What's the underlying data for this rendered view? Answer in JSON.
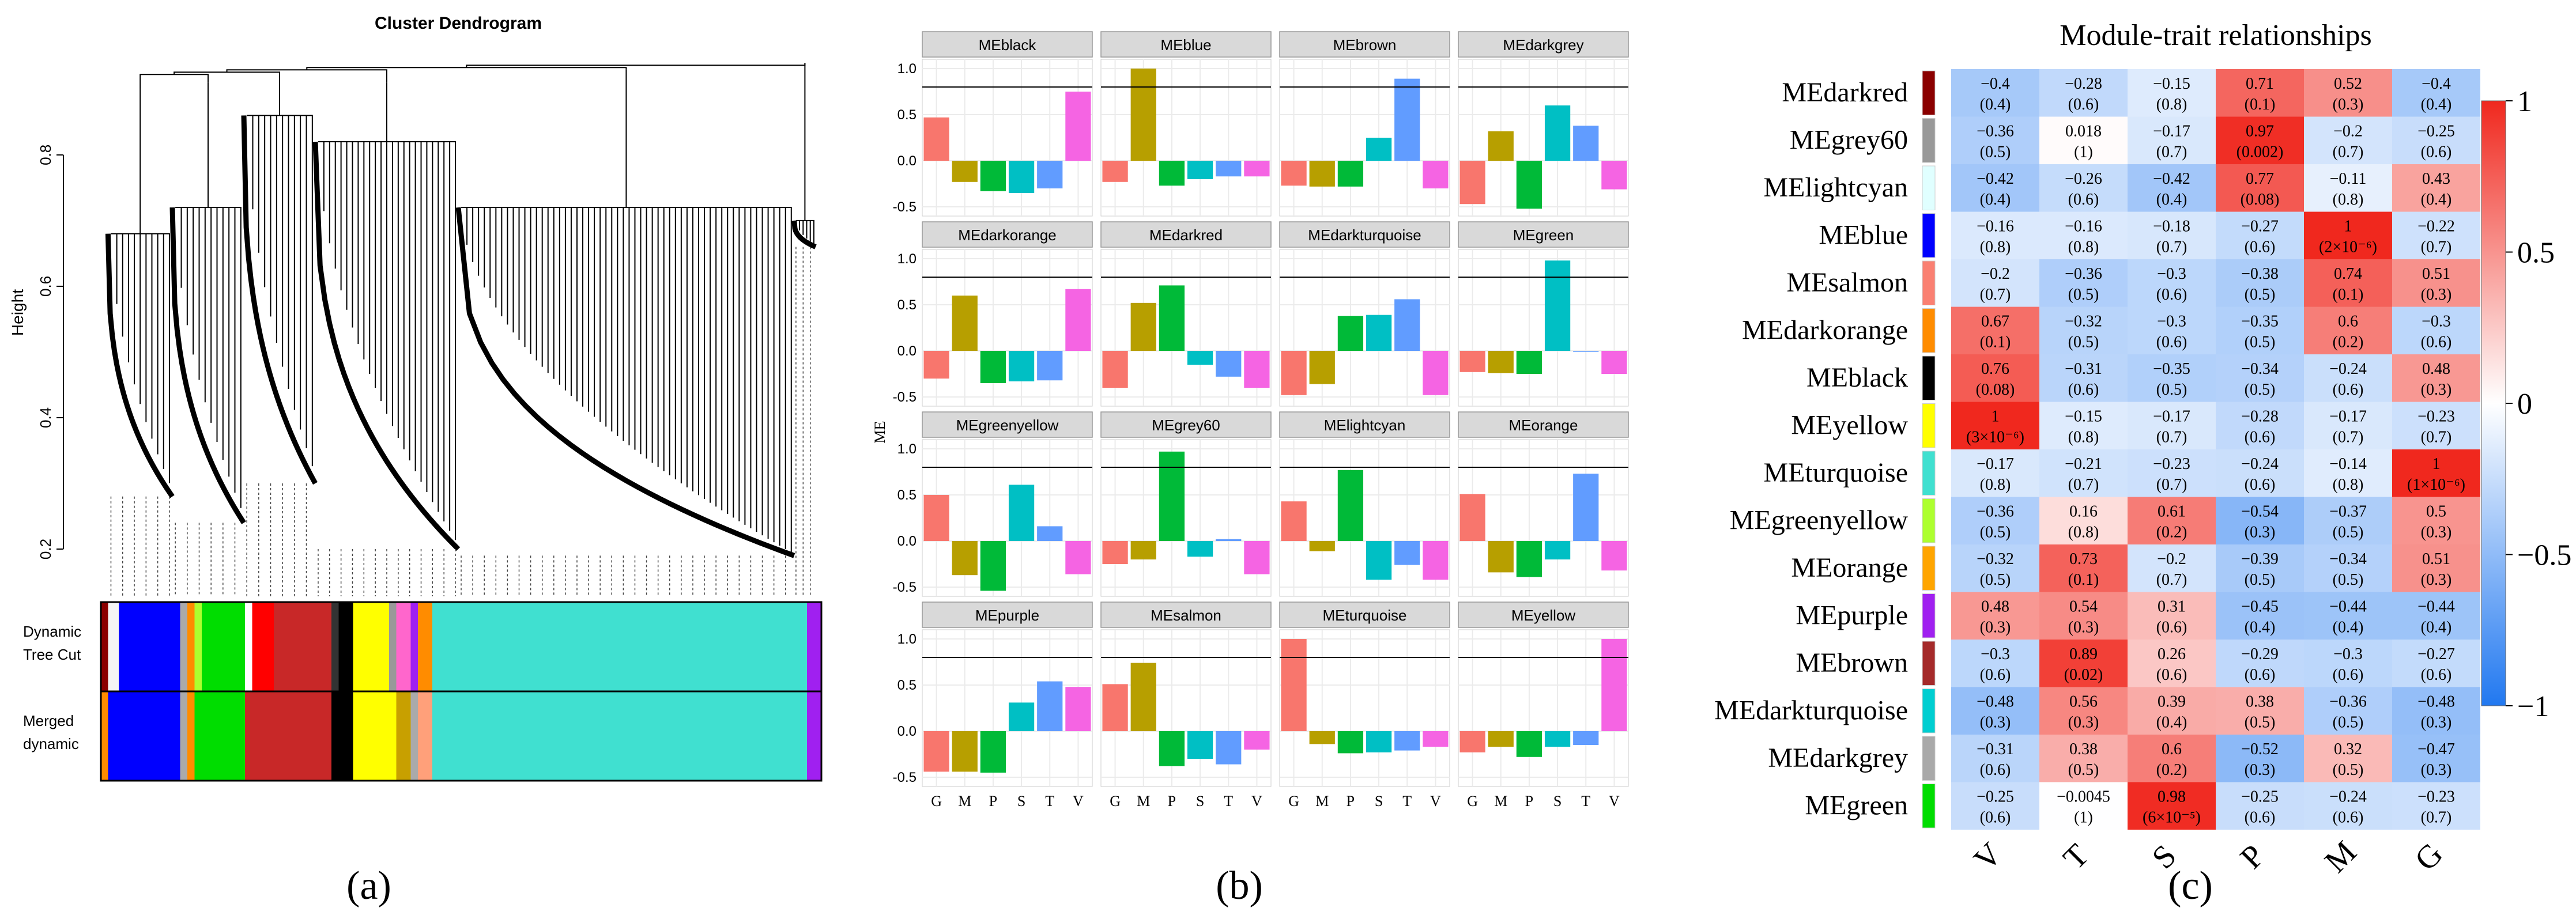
{
  "panel_labels": [
    "(a)",
    "(b)",
    "(c)"
  ],
  "chart_data": [
    {
      "type": "dendrogram",
      "title": "Cluster Dendrogram",
      "ylabel": "Height",
      "yticks": [
        0.2,
        0.4,
        0.6,
        0.8
      ],
      "ylim": [
        0.15,
        0.97
      ],
      "merge_height": 0.94,
      "groups": [
        {
          "span": [
            0.01,
            0.1
          ],
          "top": 0.9,
          "h1": 0.68,
          "h2": 0.28
        },
        {
          "span": [
            0.1,
            0.2
          ],
          "top": 0.91,
          "h1": 0.72,
          "h2": 0.24
        },
        {
          "span": [
            0.2,
            0.3
          ],
          "top": 0.92,
          "h1": 0.86,
          "h2": 0.3
        },
        {
          "span": [
            0.3,
            0.5
          ],
          "top": 0.91,
          "h1": 0.82,
          "h2": 0.2
        },
        {
          "span": [
            0.5,
            0.97
          ],
          "top": 0.93,
          "h1": 0.72,
          "h2": 0.19
        },
        {
          "span": [
            0.97,
            1.0
          ],
          "top": 0.94,
          "h1": 0.7,
          "h2": 0.66
        }
      ],
      "color_rows": [
        {
          "label": [
            "Dynamic",
            "Tree Cut"
          ],
          "segments": [
            [
              "#8b0000",
              0.0,
              0.01
            ],
            [
              "#f5f5f5",
              0.01,
              0.025
            ],
            [
              "#0000ff",
              0.025,
              0.11
            ],
            [
              "#aaaaaa",
              0.11,
              0.12
            ],
            [
              "#ff8c00",
              0.12,
              0.13
            ],
            [
              "#adff2f",
              0.13,
              0.14
            ],
            [
              "#00dd00",
              0.14,
              0.2
            ],
            [
              "#ffffff",
              0.2,
              0.21
            ],
            [
              "#ff0000",
              0.21,
              0.24
            ],
            [
              "#c82828",
              0.24,
              0.32
            ],
            [
              "#333333",
              0.32,
              0.33
            ],
            [
              "#000000",
              0.33,
              0.35
            ],
            [
              "#ffff00",
              0.35,
              0.38
            ],
            [
              "#ffff00",
              0.38,
              0.4
            ],
            [
              "#999999",
              0.4,
              0.41
            ],
            [
              "#ff66cc",
              0.41,
              0.43
            ],
            [
              "#a020f0",
              0.43,
              0.44
            ],
            [
              "#ff8c00",
              0.44,
              0.46
            ],
            [
              "#40e0d0",
              0.46,
              0.98
            ],
            [
              "#a020f0",
              0.98,
              1.0
            ]
          ]
        },
        {
          "label": [
            "Merged",
            "dynamic"
          ],
          "segments": [
            [
              "#ff8c00",
              0.0,
              0.01
            ],
            [
              "#0000ff",
              0.01,
              0.11
            ],
            [
              "#aaaaaa",
              0.11,
              0.12
            ],
            [
              "#ff8c00",
              0.12,
              0.13
            ],
            [
              "#00dd00",
              0.13,
              0.2
            ],
            [
              "#c82828",
              0.2,
              0.32
            ],
            [
              "#000000",
              0.32,
              0.35
            ],
            [
              "#ffff00",
              0.35,
              0.41
            ],
            [
              "#c8a000",
              0.41,
              0.43
            ],
            [
              "#aaaaaa",
              0.43,
              0.44
            ],
            [
              "#ffa07a",
              0.44,
              0.46
            ],
            [
              "#40e0d0",
              0.46,
              0.98
            ],
            [
              "#a020f0",
              0.98,
              1.0
            ]
          ]
        }
      ]
    },
    {
      "type": "bar",
      "ylabel": "ME",
      "categories": [
        "G",
        "M",
        "P",
        "S",
        "T",
        "V"
      ],
      "category_colors": [
        "#f8766d",
        "#b79f00",
        "#00ba38",
        "#00bfc4",
        "#619cff",
        "#f564e3"
      ],
      "ylim": [
        -0.6,
        1.1
      ],
      "yticks": [
        -0.5,
        0.0,
        0.5,
        1.0
      ],
      "hline": 0.8,
      "facets": [
        {
          "name": "MEblack",
          "values": [
            0.47,
            -0.23,
            -0.33,
            -0.35,
            -0.3,
            0.75
          ]
        },
        {
          "name": "MEblue",
          "values": [
            -0.23,
            1.0,
            -0.27,
            -0.2,
            -0.17,
            -0.17
          ]
        },
        {
          "name": "MEbrown",
          "values": [
            -0.27,
            -0.28,
            -0.28,
            0.25,
            0.89,
            -0.3
          ]
        },
        {
          "name": "MEdarkgrey",
          "values": [
            -0.47,
            0.32,
            -0.52,
            0.6,
            0.38,
            -0.31
          ]
        },
        {
          "name": "MEdarkorange",
          "values": [
            -0.3,
            0.6,
            -0.35,
            -0.33,
            -0.32,
            0.67
          ]
        },
        {
          "name": "MEdarkred",
          "values": [
            -0.4,
            0.52,
            0.71,
            -0.15,
            -0.28,
            -0.4
          ]
        },
        {
          "name": "MEdarkturquoise",
          "values": [
            -0.48,
            -0.36,
            0.38,
            0.39,
            0.56,
            -0.48
          ]
        },
        {
          "name": "MEgreen",
          "values": [
            -0.23,
            -0.24,
            -0.25,
            0.98,
            -0.01,
            -0.25
          ]
        },
        {
          "name": "MEgreenyellow",
          "values": [
            0.5,
            -0.37,
            -0.54,
            0.61,
            0.16,
            -0.36
          ]
        },
        {
          "name": "MEgrey60",
          "values": [
            -0.25,
            -0.2,
            0.97,
            -0.17,
            0.02,
            -0.36
          ]
        },
        {
          "name": "MElightcyan",
          "values": [
            0.43,
            -0.11,
            0.77,
            -0.42,
            -0.26,
            -0.42
          ]
        },
        {
          "name": "MEorange",
          "values": [
            0.51,
            -0.34,
            -0.39,
            -0.2,
            0.73,
            -0.32
          ]
        },
        {
          "name": "MEpurple",
          "values": [
            -0.44,
            -0.44,
            -0.45,
            0.31,
            0.54,
            0.48
          ]
        },
        {
          "name": "MEsalmon",
          "values": [
            0.51,
            0.74,
            -0.38,
            -0.3,
            -0.36,
            -0.2
          ]
        },
        {
          "name": "MEturquoise",
          "values": [
            1.0,
            -0.14,
            -0.24,
            -0.23,
            -0.21,
            -0.17
          ]
        },
        {
          "name": "MEyellow",
          "values": [
            -0.23,
            -0.17,
            -0.28,
            -0.17,
            -0.15,
            1.0
          ]
        }
      ]
    },
    {
      "type": "heatmap",
      "title": "Module-trait relationships",
      "columns": [
        "V",
        "T",
        "S",
        "P",
        "M",
        "G"
      ],
      "colorbar_ticks": [
        "1",
        "0.5",
        "0",
        "−0.5",
        "−1"
      ],
      "rows": [
        {
          "name": "MEdarkred",
          "color": "#8b0000",
          "values": [
            -0.4,
            -0.28,
            -0.15,
            0.71,
            0.52,
            -0.4
          ],
          "labels": [
            [
              "−0.4",
              "(0.4)"
            ],
            [
              "−0.28",
              "(0.6)"
            ],
            [
              "−0.15",
              "(0.8)"
            ],
            [
              "0.71",
              "(0.1)"
            ],
            [
              "0.52",
              "(0.3)"
            ],
            [
              "−0.4",
              "(0.4)"
            ]
          ]
        },
        {
          "name": "MEgrey60",
          "color": "#999999",
          "values": [
            -0.36,
            0.018,
            -0.17,
            0.97,
            -0.2,
            -0.25
          ],
          "labels": [
            [
              "−0.36",
              "(0.5)"
            ],
            [
              "0.018",
              "(1)"
            ],
            [
              "−0.17",
              "(0.7)"
            ],
            [
              "0.97",
              "(0.002)"
            ],
            [
              "−0.2",
              "(0.7)"
            ],
            [
              "−0.25",
              "(0.6)"
            ]
          ]
        },
        {
          "name": "MElightcyan",
          "color": "#e0ffff",
          "values": [
            -0.42,
            -0.26,
            -0.42,
            0.77,
            -0.11,
            0.43
          ],
          "labels": [
            [
              "−0.42",
              "(0.4)"
            ],
            [
              "−0.26",
              "(0.6)"
            ],
            [
              "−0.42",
              "(0.4)"
            ],
            [
              "0.77",
              "(0.08)"
            ],
            [
              "−0.11",
              "(0.8)"
            ],
            [
              "0.43",
              "(0.4)"
            ]
          ]
        },
        {
          "name": "MEblue",
          "color": "#0000ff",
          "values": [
            -0.16,
            -0.16,
            -0.18,
            -0.27,
            1,
            -0.22
          ],
          "labels": [
            [
              "−0.16",
              "(0.8)"
            ],
            [
              "−0.16",
              "(0.8)"
            ],
            [
              "−0.18",
              "(0.7)"
            ],
            [
              "−0.27",
              "(0.6)"
            ],
            [
              "1",
              "(2×10⁻⁶)"
            ],
            [
              "−0.22",
              "(0.7)"
            ]
          ]
        },
        {
          "name": "MEsalmon",
          "color": "#fa8072",
          "values": [
            -0.2,
            -0.36,
            -0.3,
            -0.38,
            0.74,
            0.51
          ],
          "labels": [
            [
              "−0.2",
              "(0.7)"
            ],
            [
              "−0.36",
              "(0.5)"
            ],
            [
              "−0.3",
              "(0.6)"
            ],
            [
              "−0.38",
              "(0.5)"
            ],
            [
              "0.74",
              "(0.1)"
            ],
            [
              "0.51",
              "(0.3)"
            ]
          ]
        },
        {
          "name": "MEdarkorange",
          "color": "#ff8c00",
          "values": [
            0.67,
            -0.32,
            -0.3,
            -0.35,
            0.6,
            -0.3
          ],
          "labels": [
            [
              "0.67",
              "(0.1)"
            ],
            [
              "−0.32",
              "(0.5)"
            ],
            [
              "−0.3",
              "(0.6)"
            ],
            [
              "−0.35",
              "(0.5)"
            ],
            [
              "0.6",
              "(0.2)"
            ],
            [
              "−0.3",
              "(0.6)"
            ]
          ]
        },
        {
          "name": "MEblack",
          "color": "#000000",
          "values": [
            0.76,
            -0.31,
            -0.35,
            -0.34,
            -0.24,
            0.48
          ],
          "labels": [
            [
              "0.76",
              "(0.08)"
            ],
            [
              "−0.31",
              "(0.6)"
            ],
            [
              "−0.35",
              "(0.5)"
            ],
            [
              "−0.34",
              "(0.5)"
            ],
            [
              "−0.24",
              "(0.6)"
            ],
            [
              "0.48",
              "(0.3)"
            ]
          ]
        },
        {
          "name": "MEyellow",
          "color": "#ffff00",
          "values": [
            1,
            -0.15,
            -0.17,
            -0.28,
            -0.17,
            -0.23
          ],
          "labels": [
            [
              "1",
              "(3×10⁻⁶)"
            ],
            [
              "−0.15",
              "(0.8)"
            ],
            [
              "−0.17",
              "(0.7)"
            ],
            [
              "−0.28",
              "(0.6)"
            ],
            [
              "−0.17",
              "(0.7)"
            ],
            [
              "−0.23",
              "(0.7)"
            ]
          ]
        },
        {
          "name": "MEturquoise",
          "color": "#40e0d0",
          "values": [
            -0.17,
            -0.21,
            -0.23,
            -0.24,
            -0.14,
            1
          ],
          "labels": [
            [
              "−0.17",
              "(0.8)"
            ],
            [
              "−0.21",
              "(0.7)"
            ],
            [
              "−0.23",
              "(0.7)"
            ],
            [
              "−0.24",
              "(0.6)"
            ],
            [
              "−0.14",
              "(0.8)"
            ],
            [
              "1",
              "(1×10⁻⁶)"
            ]
          ]
        },
        {
          "name": "MEgreenyellow",
          "color": "#adff2f",
          "values": [
            -0.36,
            0.16,
            0.61,
            -0.54,
            -0.37,
            0.5
          ],
          "labels": [
            [
              "−0.36",
              "(0.5)"
            ],
            [
              "0.16",
              "(0.8)"
            ],
            [
              "0.61",
              "(0.2)"
            ],
            [
              "−0.54",
              "(0.3)"
            ],
            [
              "−0.37",
              "(0.5)"
            ],
            [
              "0.5",
              "(0.3)"
            ]
          ]
        },
        {
          "name": "MEorange",
          "color": "#ffa500",
          "values": [
            -0.32,
            0.73,
            -0.2,
            -0.39,
            -0.34,
            0.51
          ],
          "labels": [
            [
              "−0.32",
              "(0.5)"
            ],
            [
              "0.73",
              "(0.1)"
            ],
            [
              "−0.2",
              "(0.7)"
            ],
            [
              "−0.39",
              "(0.5)"
            ],
            [
              "−0.34",
              "(0.5)"
            ],
            [
              "0.51",
              "(0.3)"
            ]
          ]
        },
        {
          "name": "MEpurple",
          "color": "#a020f0",
          "values": [
            0.48,
            0.54,
            0.31,
            -0.45,
            -0.44,
            -0.44
          ],
          "labels": [
            [
              "0.48",
              "(0.3)"
            ],
            [
              "0.54",
              "(0.3)"
            ],
            [
              "0.31",
              "(0.6)"
            ],
            [
              "−0.45",
              "(0.4)"
            ],
            [
              "−0.44",
              "(0.4)"
            ],
            [
              "−0.44",
              "(0.4)"
            ]
          ]
        },
        {
          "name": "MEbrown",
          "color": "#a52a2a",
          "values": [
            -0.3,
            0.89,
            0.26,
            -0.29,
            -0.3,
            -0.27
          ],
          "labels": [
            [
              "−0.3",
              "(0.6)"
            ],
            [
              "0.89",
              "(0.02)"
            ],
            [
              "0.26",
              "(0.6)"
            ],
            [
              "−0.29",
              "(0.6)"
            ],
            [
              "−0.3",
              "(0.6)"
            ],
            [
              "−0.27",
              "(0.6)"
            ]
          ]
        },
        {
          "name": "MEdarkturquoise",
          "color": "#00ced1",
          "values": [
            -0.48,
            0.56,
            0.39,
            0.38,
            -0.36,
            -0.48
          ],
          "labels": [
            [
              "−0.48",
              "(0.3)"
            ],
            [
              "0.56",
              "(0.3)"
            ],
            [
              "0.39",
              "(0.4)"
            ],
            [
              "0.38",
              "(0.5)"
            ],
            [
              "−0.36",
              "(0.5)"
            ],
            [
              "−0.48",
              "(0.3)"
            ]
          ]
        },
        {
          "name": "MEdarkgrey",
          "color": "#a9a9a9",
          "values": [
            -0.31,
            0.38,
            0.6,
            -0.52,
            0.32,
            -0.47
          ],
          "labels": [
            [
              "−0.31",
              "(0.6)"
            ],
            [
              "0.38",
              "(0.5)"
            ],
            [
              "0.6",
              "(0.2)"
            ],
            [
              "−0.52",
              "(0.3)"
            ],
            [
              "0.32",
              "(0.5)"
            ],
            [
              "−0.47",
              "(0.3)"
            ]
          ]
        },
        {
          "name": "MEgreen",
          "color": "#00dd00",
          "values": [
            -0.25,
            -0.0045,
            0.98,
            -0.25,
            -0.24,
            -0.23
          ],
          "labels": [
            [
              "−0.25",
              "(0.6)"
            ],
            [
              "−0.0045",
              "(1)"
            ],
            [
              "0.98",
              "(6×10⁻⁵)"
            ],
            [
              "−0.25",
              "(0.6)"
            ],
            [
              "−0.24",
              "(0.6)"
            ],
            [
              "−0.23",
              "(0.7)"
            ]
          ]
        }
      ]
    }
  ]
}
